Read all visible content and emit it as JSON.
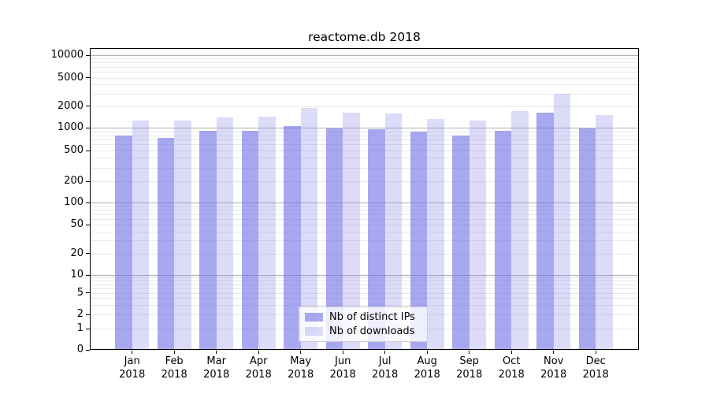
{
  "title": "reactome.db 2018",
  "legend": {
    "items": [
      {
        "label": "Nb of distinct IPs",
        "color": "rgba(115,115,230,0.62)"
      },
      {
        "label": "Nb of downloads",
        "color": "rgba(115,115,230,0.25)"
      }
    ]
  },
  "colors": {
    "bar_dark": "rgba(115,115,230,0.62)",
    "bar_light": "rgba(115,115,230,0.25)",
    "grid_major": "#b0b0b0",
    "grid_minor": "#e8e8e8"
  },
  "chart_data": {
    "type": "bar",
    "title": "reactome.db 2018",
    "categories": [
      "Jan",
      "Feb",
      "Mar",
      "Apr",
      "May",
      "Jun",
      "Jul",
      "Aug",
      "Sep",
      "Oct",
      "Nov",
      "Dec"
    ],
    "category_year": "2018",
    "series": [
      {
        "name": "Nb of distinct IPs",
        "values": [
          795,
          740,
          920,
          925,
          1060,
          985,
          955,
          895,
          785,
          910,
          1605,
          995
        ]
      },
      {
        "name": "Nb of downloads",
        "values": [
          1250,
          1270,
          1385,
          1430,
          1890,
          1620,
          1590,
          1315,
          1250,
          1690,
          2965,
          1500
        ]
      }
    ],
    "yscale": "symlog",
    "yticks": [
      0,
      1,
      2,
      5,
      10,
      20,
      50,
      100,
      200,
      500,
      1000,
      2000,
      5000,
      10000
    ],
    "ylim": [
      0,
      13000
    ],
    "grid": "both",
    "legend_position": "lower center"
  }
}
